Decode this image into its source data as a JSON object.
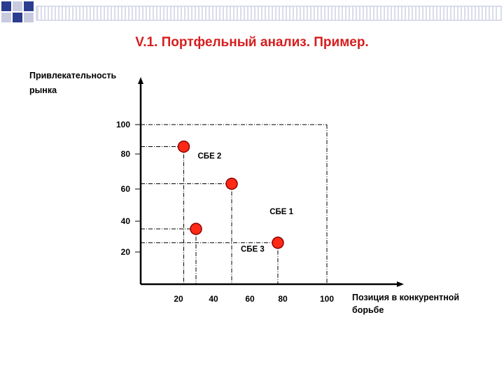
{
  "title": "V.1. Портфельный анализ. Пример.",
  "colors": {
    "title": "#d61e1e",
    "point_fill": "#ff2a16",
    "point_stroke": "#8b0000",
    "deco_dark": "#2b3d8f",
    "deco_light": "#c8cbe0"
  },
  "chart_data": {
    "type": "scatter",
    "title": "V.1. Портфельный анализ. Пример.",
    "xlabel": "Позиция в конкурентной\nборьбе",
    "ylabel": "Привлекательность\nрынка",
    "xlim": [
      0,
      100
    ],
    "ylim": [
      0,
      100
    ],
    "x_ticks": [
      20,
      40,
      60,
      80,
      100
    ],
    "y_ticks": [
      20,
      40,
      60,
      80,
      100
    ],
    "grid": false,
    "points": [
      {
        "label": "",
        "x": 23,
        "y": 85
      },
      {
        "label": "",
        "x": 50,
        "y": 63
      },
      {
        "label": "",
        "x": 30,
        "y": 35
      },
      {
        "label": "",
        "x": 77,
        "y": 26
      }
    ],
    "annotations": [
      {
        "text": "СБЕ 2",
        "x": 31,
        "y": 79
      },
      {
        "text": "СБЕ 1",
        "x": 72,
        "y": 46
      },
      {
        "text": "СБЕ 3",
        "x": 55,
        "y": 22
      }
    ]
  }
}
